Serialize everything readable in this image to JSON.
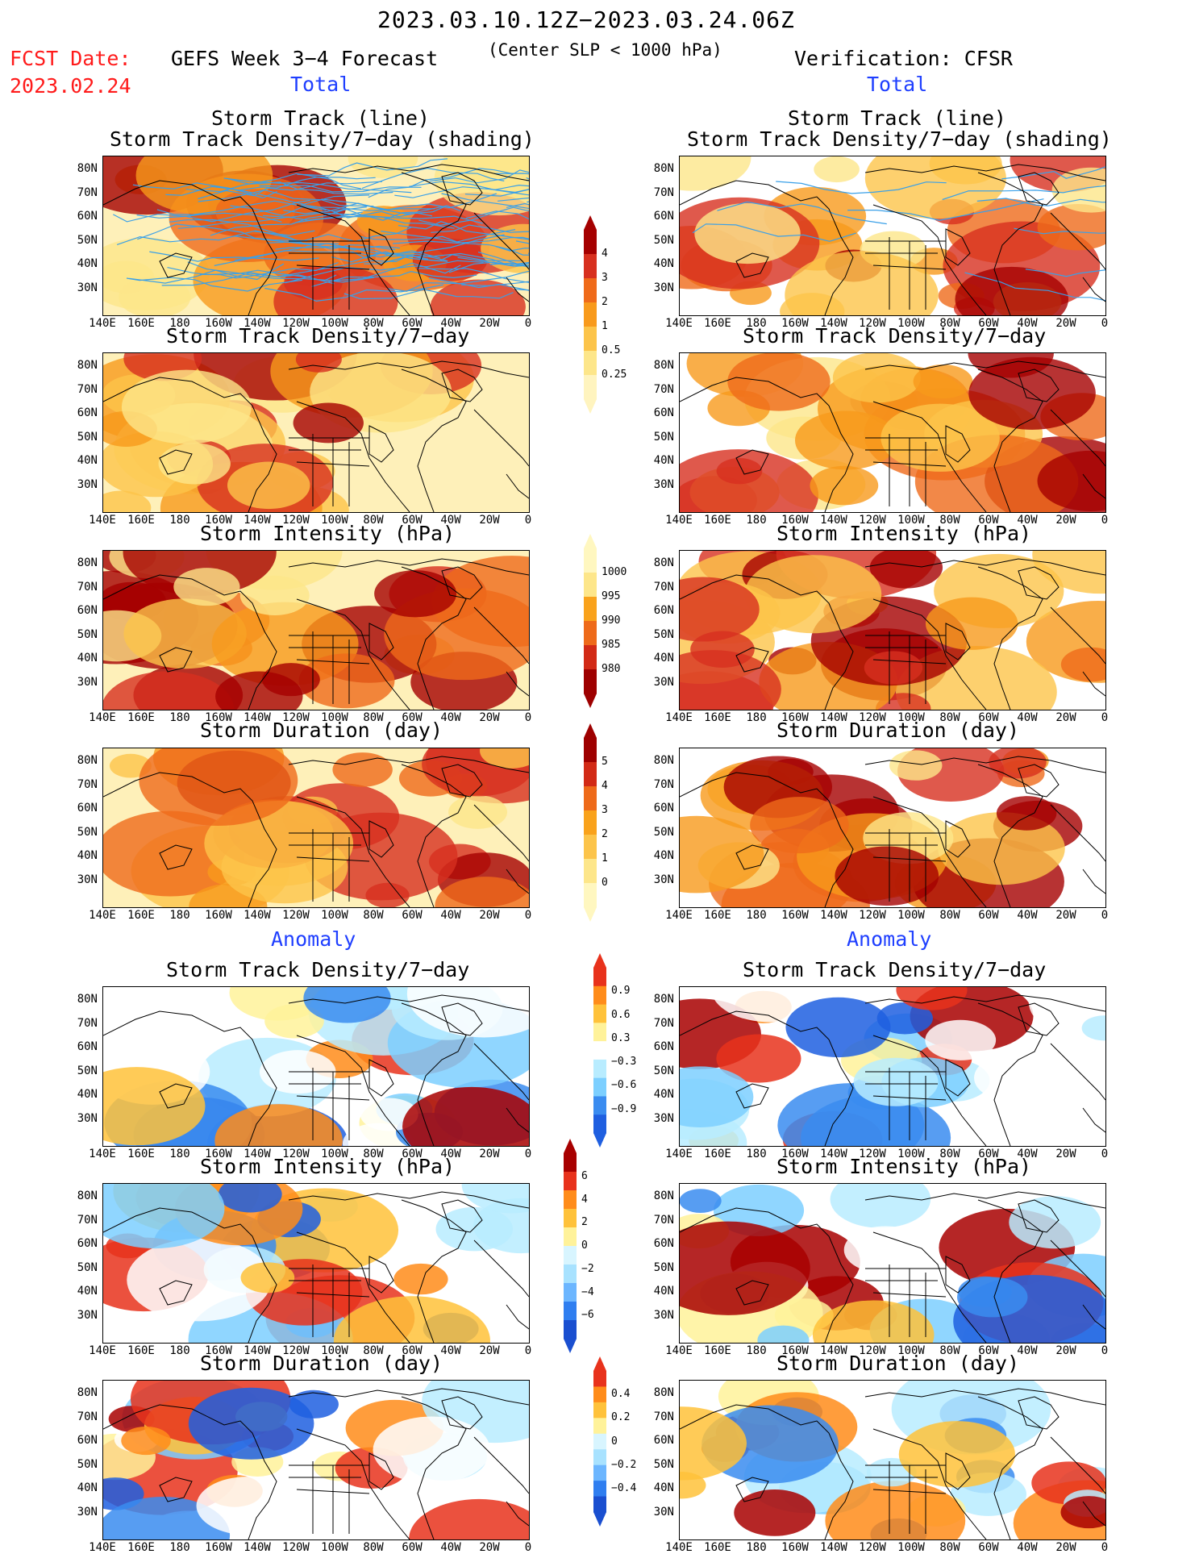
{
  "header": {
    "date_range": "2023.03.10.12Z−2023.03.24.06Z",
    "fcst_label": "FCST Date:",
    "fcst_date": "2023.02.24",
    "model_title": "GEFS Week 3−4 Forecast",
    "criteria": "(Center SLP < 1000 hPa)",
    "verification": "Verification: CFSR"
  },
  "sections": {
    "total_left": "Total",
    "total_right": "Total",
    "anomaly_left": "Anomaly",
    "anomaly_right": "Anomaly"
  },
  "panel_titles": {
    "track_line": "Storm Track (line)",
    "track_density_shading": "Storm Track Density/7−day (shading)",
    "track_density": "Storm Track Density/7−day",
    "intensity": "Storm Intensity (hPa)",
    "duration": "Storm Duration (day)"
  },
  "axes": {
    "lat_labels": [
      "80N",
      "70N",
      "60N",
      "50N",
      "40N",
      "30N"
    ],
    "lon_labels": [
      "140E",
      "160E",
      "180",
      "160W",
      "140W",
      "120W",
      "100W",
      "80W",
      "60W",
      "40W",
      "20W",
      "0"
    ]
  },
  "colorbars": {
    "density_total": {
      "labels": [
        "4",
        "3",
        "2",
        "1",
        "0.5",
        "0.25"
      ],
      "colors": [
        "#a50000",
        "#d7301f",
        "#ef6a1a",
        "#f89a1c",
        "#fcc44a",
        "#fde68a",
        "#fff4bf"
      ]
    },
    "intensity_total": {
      "labels": [
        "1000",
        "995",
        "990",
        "985",
        "980"
      ],
      "colors": [
        "#fff7c0",
        "#fde68a",
        "#f9a21b",
        "#ee6a1a",
        "#d22a16",
        "#9e0000"
      ]
    },
    "duration_total": {
      "labels": [
        "5",
        "4",
        "3",
        "2",
        "1",
        "0"
      ],
      "colors": [
        "#9e0000",
        "#d22a16",
        "#ee6a1a",
        "#f9a21b",
        "#fcc44a",
        "#fde68a",
        "#fff7c0"
      ]
    },
    "density_anom": {
      "labels": [
        "0.9",
        "0.6",
        "0.3",
        "−0.3",
        "−0.6",
        "−0.9"
      ],
      "colors": [
        "#e8321c",
        "#ff8c1a",
        "#ffc23a",
        "#fff29a",
        "#ffffff",
        "#b8ecff",
        "#7ccfff",
        "#3a8cf0",
        "#1f5fe0"
      ]
    },
    "intensity_anom": {
      "labels": [
        "6",
        "4",
        "2",
        "0",
        "−2",
        "−4",
        "−6"
      ],
      "colors": [
        "#a80000",
        "#e8321c",
        "#ff8c1a",
        "#ffc23a",
        "#fff29a",
        "#d8f5ff",
        "#a8e2ff",
        "#6cb6ff",
        "#2f7ef0",
        "#1a4fd0"
      ]
    },
    "duration_anom": {
      "labels": [
        "0.4",
        "0.2",
        "0",
        "−0.2",
        "−0.4"
      ],
      "colors": [
        "#e8321c",
        "#ff8c1a",
        "#ffc23a",
        "#fff29a",
        "#d8f5ff",
        "#a8e2ff",
        "#6cb6ff",
        "#2f7ef0",
        "#1a4fd0"
      ]
    }
  }
}
